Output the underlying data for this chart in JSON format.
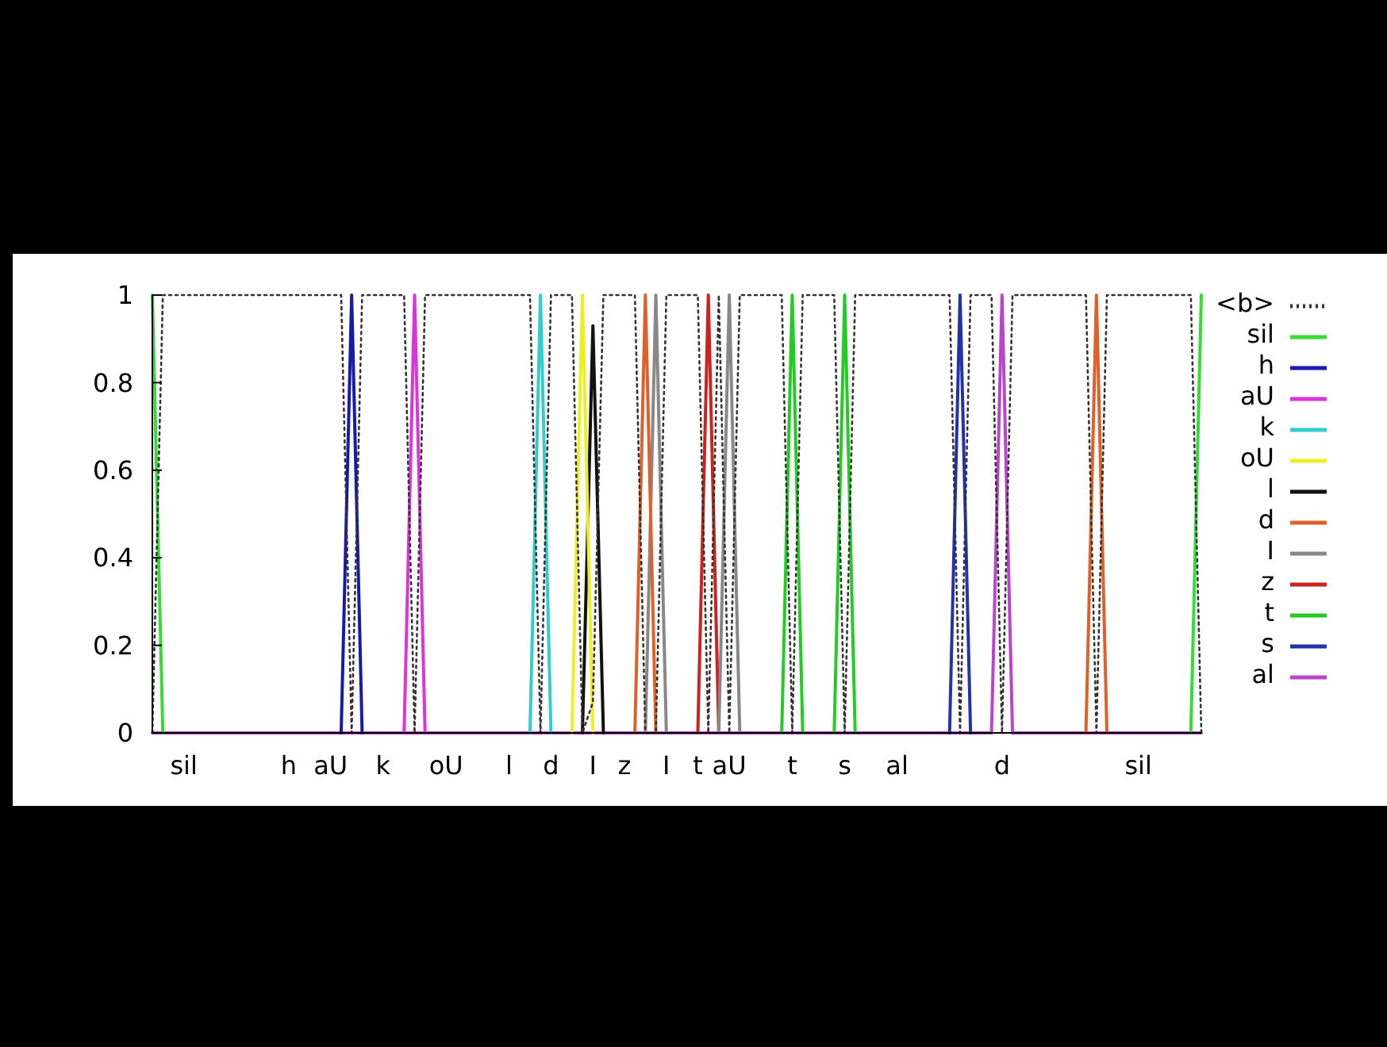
{
  "chart_data": {
    "type": "line",
    "ylim": [
      0,
      1
    ],
    "yticks": [
      0,
      0.2,
      0.4,
      0.6,
      0.8,
      1
    ],
    "categories": [
      null,
      null,
      null,
      "sil",
      null,
      null,
      null,
      null,
      null,
      null,
      null,
      null,
      null,
      "h",
      null,
      null,
      null,
      "aU",
      null,
      null,
      null,
      null,
      "k",
      null,
      null,
      null,
      null,
      null,
      "oU",
      null,
      null,
      null,
      null,
      null,
      "l",
      null,
      null,
      null,
      "d",
      null,
      null,
      null,
      "I",
      null,
      null,
      "z",
      null,
      null,
      null,
      "I",
      null,
      null,
      "t",
      null,
      null,
      "aU",
      null,
      null,
      null,
      null,
      null,
      "t",
      null,
      null,
      null,
      null,
      "s",
      null,
      null,
      null,
      null,
      "al",
      null,
      null,
      null,
      null,
      null,
      null,
      null,
      null,
      null,
      "d",
      null,
      null,
      null,
      null,
      null,
      null,
      null,
      null,
      null,
      null,
      null,
      null,
      "sil",
      null,
      null,
      null,
      null,
      null,
      null
    ],
    "legend": "right",
    "grid": false,
    "series": [
      {
        "name": "<b>",
        "color": "#333333",
        "line_style": "dotted",
        "values": [
          0,
          1,
          1,
          1,
          1,
          1,
          1,
          1,
          1,
          1,
          1,
          1,
          1,
          1,
          1,
          1,
          1,
          1,
          1,
          0,
          1,
          1,
          1,
          1,
          1,
          0,
          1,
          1,
          1,
          1,
          1,
          1,
          1,
          1,
          1,
          1,
          1,
          0,
          1,
          1,
          1,
          0,
          0.07,
          1,
          1,
          1,
          1,
          0,
          0,
          1,
          1,
          1,
          1,
          0,
          1,
          0,
          1,
          1,
          1,
          1,
          1,
          0,
          1,
          1,
          1,
          1,
          0,
          1,
          1,
          1,
          1,
          1,
          1,
          1,
          1,
          1,
          1,
          0,
          1,
          1,
          1,
          0,
          1,
          1,
          1,
          1,
          1,
          1,
          1,
          1,
          0,
          1,
          1,
          1,
          1,
          1,
          1,
          1,
          1,
          1,
          0
        ]
      },
      {
        "name": "sil",
        "color": "#33dd33",
        "values": [
          1,
          0,
          null,
          null,
          null,
          null,
          null,
          null,
          null,
          null,
          null,
          null,
          null,
          null,
          null,
          null,
          null,
          null,
          null,
          null,
          null,
          null,
          null,
          null,
          null,
          null,
          null,
          null,
          null,
          null,
          null,
          null,
          null,
          null,
          null,
          null,
          null,
          null,
          null,
          null,
          null,
          null,
          null,
          null,
          null,
          null,
          null,
          null,
          null,
          null,
          null,
          null,
          null,
          null,
          null,
          null,
          null,
          null,
          null,
          null,
          null,
          null,
          null,
          null,
          null,
          null,
          null,
          null,
          null,
          null,
          null,
          null,
          null,
          null,
          null,
          null,
          null,
          null,
          null,
          null,
          null,
          null,
          null,
          null,
          null,
          null,
          null,
          null,
          null,
          null,
          null,
          null,
          null,
          null,
          null,
          null,
          null,
          null,
          null,
          0,
          1
        ]
      },
      {
        "name": "h",
        "color": "#1a1aaa",
        "values": [
          null,
          null,
          null,
          null,
          null,
          null,
          null,
          null,
          null,
          null,
          null,
          null,
          null,
          null,
          null,
          null,
          null,
          null,
          0,
          1,
          0,
          null,
          null,
          null,
          null,
          null,
          null,
          null,
          null,
          null,
          null,
          null,
          null,
          null,
          null,
          null,
          null,
          null,
          null,
          null,
          null,
          null,
          null,
          null,
          null,
          null,
          null,
          null,
          null,
          null,
          null,
          null,
          null,
          null,
          null,
          null,
          null,
          null,
          null,
          null,
          null,
          null,
          null,
          null,
          null,
          null,
          null,
          null,
          null,
          null,
          null,
          null,
          null,
          null,
          null,
          null,
          null,
          null,
          null,
          null,
          null,
          null,
          null,
          null,
          null,
          null,
          null,
          null,
          null,
          null,
          null,
          null,
          null,
          null,
          null,
          null,
          null,
          null,
          null,
          null,
          null
        ]
      },
      {
        "name": "aU",
        "color": "#dd33dd",
        "values": [
          null,
          null,
          null,
          null,
          null,
          null,
          null,
          null,
          null,
          null,
          null,
          null,
          null,
          null,
          null,
          null,
          null,
          null,
          null,
          null,
          null,
          null,
          null,
          null,
          0,
          1,
          0,
          null,
          null,
          null,
          null,
          null,
          null,
          null,
          null,
          null,
          null,
          null,
          null,
          null,
          null,
          null,
          null,
          null,
          null,
          null,
          null,
          null,
          null,
          null,
          null,
          null,
          null,
          null,
          null,
          null,
          null,
          null,
          null,
          null,
          null,
          null,
          null,
          null,
          null,
          null,
          null,
          null,
          null,
          null,
          null,
          null,
          null,
          null,
          null,
          null,
          null,
          null,
          null,
          null,
          null,
          null,
          null,
          null,
          null,
          null,
          null,
          null,
          null,
          null,
          null,
          null,
          null,
          null,
          null,
          null,
          null,
          null,
          null,
          null,
          null
        ]
      },
      {
        "name": "k",
        "color": "#33cccc",
        "values": [
          null,
          null,
          null,
          null,
          null,
          null,
          null,
          null,
          null,
          null,
          null,
          null,
          null,
          null,
          null,
          null,
          null,
          null,
          null,
          null,
          null,
          null,
          null,
          null,
          null,
          null,
          null,
          null,
          null,
          null,
          null,
          null,
          null,
          null,
          null,
          null,
          0,
          1,
          0,
          null,
          null,
          null,
          null,
          null,
          null,
          null,
          null,
          null,
          null,
          null,
          null,
          null,
          null,
          null,
          null,
          null,
          null,
          null,
          null,
          null,
          null,
          null,
          null,
          null,
          null,
          null,
          null,
          null,
          null,
          null,
          null,
          null,
          null,
          null,
          null,
          null,
          null,
          null,
          null,
          null,
          null,
          null,
          null,
          null,
          null,
          null,
          null,
          null,
          null,
          null,
          null,
          null,
          null,
          null,
          null,
          null,
          null,
          null,
          null,
          null,
          null
        ]
      },
      {
        "name": "oU",
        "color": "#eeee22",
        "values": [
          null,
          null,
          null,
          null,
          null,
          null,
          null,
          null,
          null,
          null,
          null,
          null,
          null,
          null,
          null,
          null,
          null,
          null,
          null,
          null,
          null,
          null,
          null,
          null,
          null,
          null,
          null,
          null,
          null,
          null,
          null,
          null,
          null,
          null,
          null,
          null,
          null,
          null,
          null,
          null,
          0,
          1,
          0,
          null,
          null,
          null,
          null,
          null,
          null,
          null,
          null,
          null,
          null,
          null,
          null,
          null,
          null,
          null,
          null,
          null,
          null,
          null,
          null,
          null,
          null,
          null,
          null,
          null,
          null,
          null,
          null,
          null,
          null,
          null,
          null,
          null,
          null,
          null,
          null,
          null,
          null,
          null,
          null,
          null,
          null,
          null,
          null,
          null,
          null,
          null,
          null,
          null,
          null,
          null,
          null,
          null,
          null,
          null,
          null,
          null,
          null
        ]
      },
      {
        "name": "l",
        "color": "#111111",
        "values": [
          null,
          null,
          null,
          null,
          null,
          null,
          null,
          null,
          null,
          null,
          null,
          null,
          null,
          null,
          null,
          null,
          null,
          null,
          null,
          null,
          null,
          null,
          null,
          null,
          null,
          null,
          null,
          null,
          null,
          null,
          null,
          null,
          null,
          null,
          null,
          null,
          null,
          null,
          null,
          null,
          null,
          0,
          0.93,
          0,
          null,
          null,
          null,
          null,
          null,
          null,
          null,
          null,
          null,
          null,
          null,
          null,
          null,
          null,
          null,
          null,
          null,
          null,
          null,
          null,
          null,
          null,
          null,
          null,
          null,
          null,
          null,
          null,
          null,
          null,
          null,
          null,
          null,
          null,
          null,
          null,
          null,
          null,
          null,
          null,
          null,
          null,
          null,
          null,
          null,
          null,
          null,
          null,
          null,
          null,
          null,
          null,
          null,
          null,
          null,
          null,
          null
        ]
      },
      {
        "name": "d",
        "color": "#e0602a",
        "values": [
          null,
          null,
          null,
          null,
          null,
          null,
          null,
          null,
          null,
          null,
          null,
          null,
          null,
          null,
          null,
          null,
          null,
          null,
          null,
          null,
          null,
          null,
          null,
          null,
          null,
          null,
          null,
          null,
          null,
          null,
          null,
          null,
          null,
          null,
          null,
          null,
          null,
          null,
          null,
          null,
          null,
          null,
          null,
          null,
          null,
          null,
          0,
          1,
          0,
          null,
          null,
          null,
          null,
          null,
          null,
          null,
          null,
          null,
          null,
          null,
          null,
          null,
          null,
          null,
          null,
          null,
          null,
          null,
          null,
          null,
          null,
          null,
          null,
          null,
          null,
          null,
          null,
          null,
          null,
          null,
          null,
          null,
          null,
          null,
          null,
          null,
          null,
          null,
          null,
          0,
          1,
          0,
          null,
          null,
          null,
          null,
          null,
          null,
          null,
          null,
          null
        ]
      },
      {
        "name": "I",
        "color": "#888888",
        "values": [
          null,
          null,
          null,
          null,
          null,
          null,
          null,
          null,
          null,
          null,
          null,
          null,
          null,
          null,
          null,
          null,
          null,
          null,
          null,
          null,
          null,
          null,
          null,
          null,
          null,
          null,
          null,
          null,
          null,
          null,
          null,
          null,
          null,
          null,
          null,
          null,
          null,
          null,
          null,
          null,
          null,
          null,
          null,
          null,
          null,
          null,
          null,
          0,
          1,
          0,
          null,
          null,
          null,
          null,
          0,
          1,
          0,
          null,
          null,
          null,
          null,
          null,
          null,
          null,
          null,
          null,
          null,
          null,
          null,
          null,
          null,
          null,
          null,
          null,
          null,
          null,
          null,
          null,
          null,
          null,
          null,
          null,
          null,
          null,
          null,
          null,
          null,
          null,
          null,
          null,
          null,
          null,
          null,
          null,
          null,
          null,
          null,
          null,
          null,
          null,
          null
        ]
      },
      {
        "name": "z",
        "color": "#cc2222",
        "values": [
          null,
          null,
          null,
          null,
          null,
          null,
          null,
          null,
          null,
          null,
          null,
          null,
          null,
          null,
          null,
          null,
          null,
          null,
          null,
          null,
          null,
          null,
          null,
          null,
          null,
          null,
          null,
          null,
          null,
          null,
          null,
          null,
          null,
          null,
          null,
          null,
          null,
          null,
          null,
          null,
          null,
          null,
          null,
          null,
          null,
          null,
          null,
          null,
          null,
          null,
          null,
          null,
          0,
          1,
          0,
          null,
          null,
          null,
          null,
          null,
          null,
          null,
          null,
          null,
          null,
          null,
          null,
          null,
          null,
          null,
          null,
          null,
          null,
          null,
          null,
          null,
          null,
          null,
          null,
          null,
          null,
          null,
          null,
          null,
          null,
          null,
          null,
          null,
          null,
          null,
          null,
          null,
          null,
          null,
          null,
          null,
          null,
          null,
          null,
          null,
          null
        ]
      },
      {
        "name": "t",
        "color": "#22cc22",
        "values": [
          null,
          null,
          null,
          null,
          null,
          null,
          null,
          null,
          null,
          null,
          null,
          null,
          null,
          null,
          null,
          null,
          null,
          null,
          null,
          null,
          null,
          null,
          null,
          null,
          null,
          null,
          null,
          null,
          null,
          null,
          null,
          null,
          null,
          null,
          null,
          null,
          null,
          null,
          null,
          null,
          null,
          null,
          null,
          null,
          null,
          null,
          null,
          null,
          null,
          null,
          null,
          null,
          null,
          null,
          null,
          null,
          null,
          null,
          null,
          null,
          0,
          1,
          0,
          null,
          null,
          0,
          1,
          0,
          null,
          null,
          null,
          null,
          null,
          null,
          null,
          null,
          null,
          null,
          null,
          null,
          null,
          null,
          null,
          null,
          null,
          null,
          null,
          null,
          null,
          null,
          null,
          null,
          null,
          null,
          null,
          null,
          null,
          null,
          null,
          null,
          null
        ]
      },
      {
        "name": "s",
        "color": "#2233aa",
        "values": [
          null,
          null,
          null,
          null,
          null,
          null,
          null,
          null,
          null,
          null,
          null,
          null,
          null,
          null,
          null,
          null,
          null,
          null,
          null,
          null,
          null,
          null,
          null,
          null,
          null,
          null,
          null,
          null,
          null,
          null,
          null,
          null,
          null,
          null,
          null,
          null,
          null,
          null,
          null,
          null,
          null,
          null,
          null,
          null,
          null,
          null,
          null,
          null,
          null,
          null,
          null,
          null,
          null,
          null,
          null,
          null,
          null,
          null,
          null,
          null,
          null,
          null,
          null,
          null,
          null,
          null,
          null,
          null,
          null,
          null,
          null,
          null,
          null,
          null,
          null,
          null,
          0,
          1,
          0,
          null,
          null,
          null,
          null,
          null,
          null,
          null,
          null,
          null,
          null,
          null,
          null,
          null,
          null,
          null,
          null,
          null,
          null,
          null,
          null,
          null,
          null
        ]
      },
      {
        "name": "al",
        "color": "#bb44cc",
        "values": [
          0,
          0,
          0,
          0,
          0,
          0,
          0,
          0,
          0,
          0,
          0,
          0,
          0,
          0,
          0,
          0,
          0,
          0,
          0,
          0,
          0,
          0,
          0,
          0,
          0,
          0,
          0,
          0,
          0,
          0,
          0,
          0,
          0,
          0,
          0,
          0,
          0,
          0,
          0,
          0,
          0,
          0,
          0,
          0,
          0,
          0,
          0,
          0,
          0,
          0,
          0,
          0,
          0,
          0,
          0,
          0,
          0,
          0,
          0,
          0,
          0,
          0,
          0,
          0,
          0,
          0,
          0,
          0,
          0,
          0,
          0,
          0,
          0,
          0,
          0,
          0,
          0,
          0,
          0,
          0,
          0,
          1,
          0,
          0,
          0,
          0,
          0,
          0,
          0,
          0,
          0,
          0,
          0,
          0,
          0,
          0,
          0,
          0,
          0,
          0,
          0
        ]
      }
    ]
  }
}
